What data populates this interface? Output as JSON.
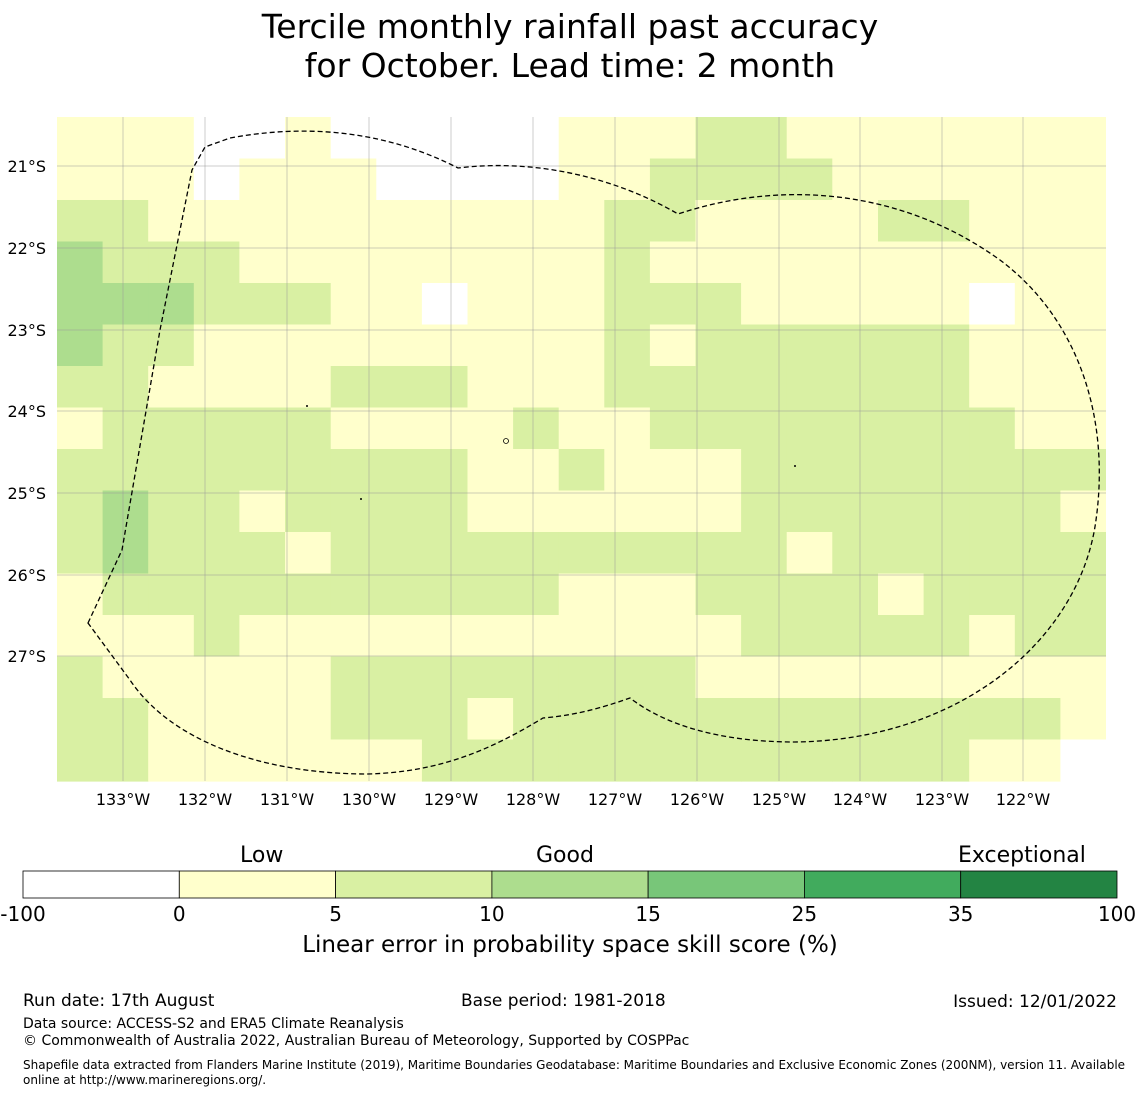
{
  "header": {
    "title_line1": "Tercile monthly rainfall past accuracy",
    "title_line2": "for October. Lead time: 2 month"
  },
  "map": {
    "lat_labels": [
      "21°S",
      "22°S",
      "23°S",
      "24°S",
      "25°S",
      "26°S",
      "27°S"
    ],
    "lon_labels": [
      "133°W",
      "132°W",
      "131°W",
      "130°W",
      "129°W",
      "128°W",
      "127°W",
      "126°W",
      "125°W",
      "124°W",
      "123°W",
      "122°W"
    ],
    "category_colors": {
      "W": "#ffffff",
      "Y": "#ffffcc",
      "L": "#d9f0a3",
      "M": "#addd8e"
    },
    "grid_rows": [
      "YYYWWYWWWWWYYYLLYYYYYYYY",
      "YYYWYYYWWWWYYLLLLYYYYYYYY",
      "LLYYYYYYYYYYLLYYYYLLYYYYY",
      "MLLLYYYYYYYYLYYYYYYYYYYYY",
      "MMMLLLYYWYYYLLLYYYYYWYYY",
      "MLLYYYYYYYYYLYLLLLLLYYYY",
      "LLYYYYLLLYYYLLLLLLLLYYYL",
      "YLLLLLYYYYLYYLLLLLLLLYYL",
      "LLLLLLLLLYYLYYYLLLLLLLLY",
      "LMLLYLLLLYYYYYYLLLLLLLYL",
      "LMLLLYLLLLLLLLLLYLLLLLLL",
      "YLLLLLLLLLLYYYLLLLYLLLLL",
      "YYYLYYYYYYYYYYYLLLLLYLLL",
      "LYYYYYLLLLLLLLYYYYYYYYYY",
      "LLYYYYLLLYLLLLLLLLLLLLYY",
      "LLYYYYYYLLLLLLLLLLLLYYWY"
    ]
  },
  "colorbar": {
    "labels": {
      "low": "Low",
      "good": "Good",
      "exceptional": "Exceptional"
    },
    "ticks": [
      "-100",
      "0",
      "5",
      "10",
      "15",
      "25",
      "35",
      "100"
    ],
    "segment_colors": [
      "#ffffff",
      "#ffffcc",
      "#d9f0a3",
      "#addd8e",
      "#78c679",
      "#41ab5d",
      "#238443"
    ],
    "title": "Linear error in probability space skill score (%)"
  },
  "footer": {
    "run_date": "Run date: 17th August",
    "base_period": "Base period: 1981-2018",
    "issued": "Issued: 12/01/2022",
    "data_source": "Data source: ACCESS-S2 and ERA5 Climate Reanalysis",
    "copyright": "© Commonwealth of Australia 2022, Australian Bureau of Meteorology, Supported by COSPPac",
    "shapefile": "Shapefile data extracted from Flanders Marine Institute (2019), Maritime Boundaries Geodatabase: Maritime Boundaries and Exclusive Economic Zones (200NM), version 11. Available online at http://www.marineregions.org/."
  }
}
